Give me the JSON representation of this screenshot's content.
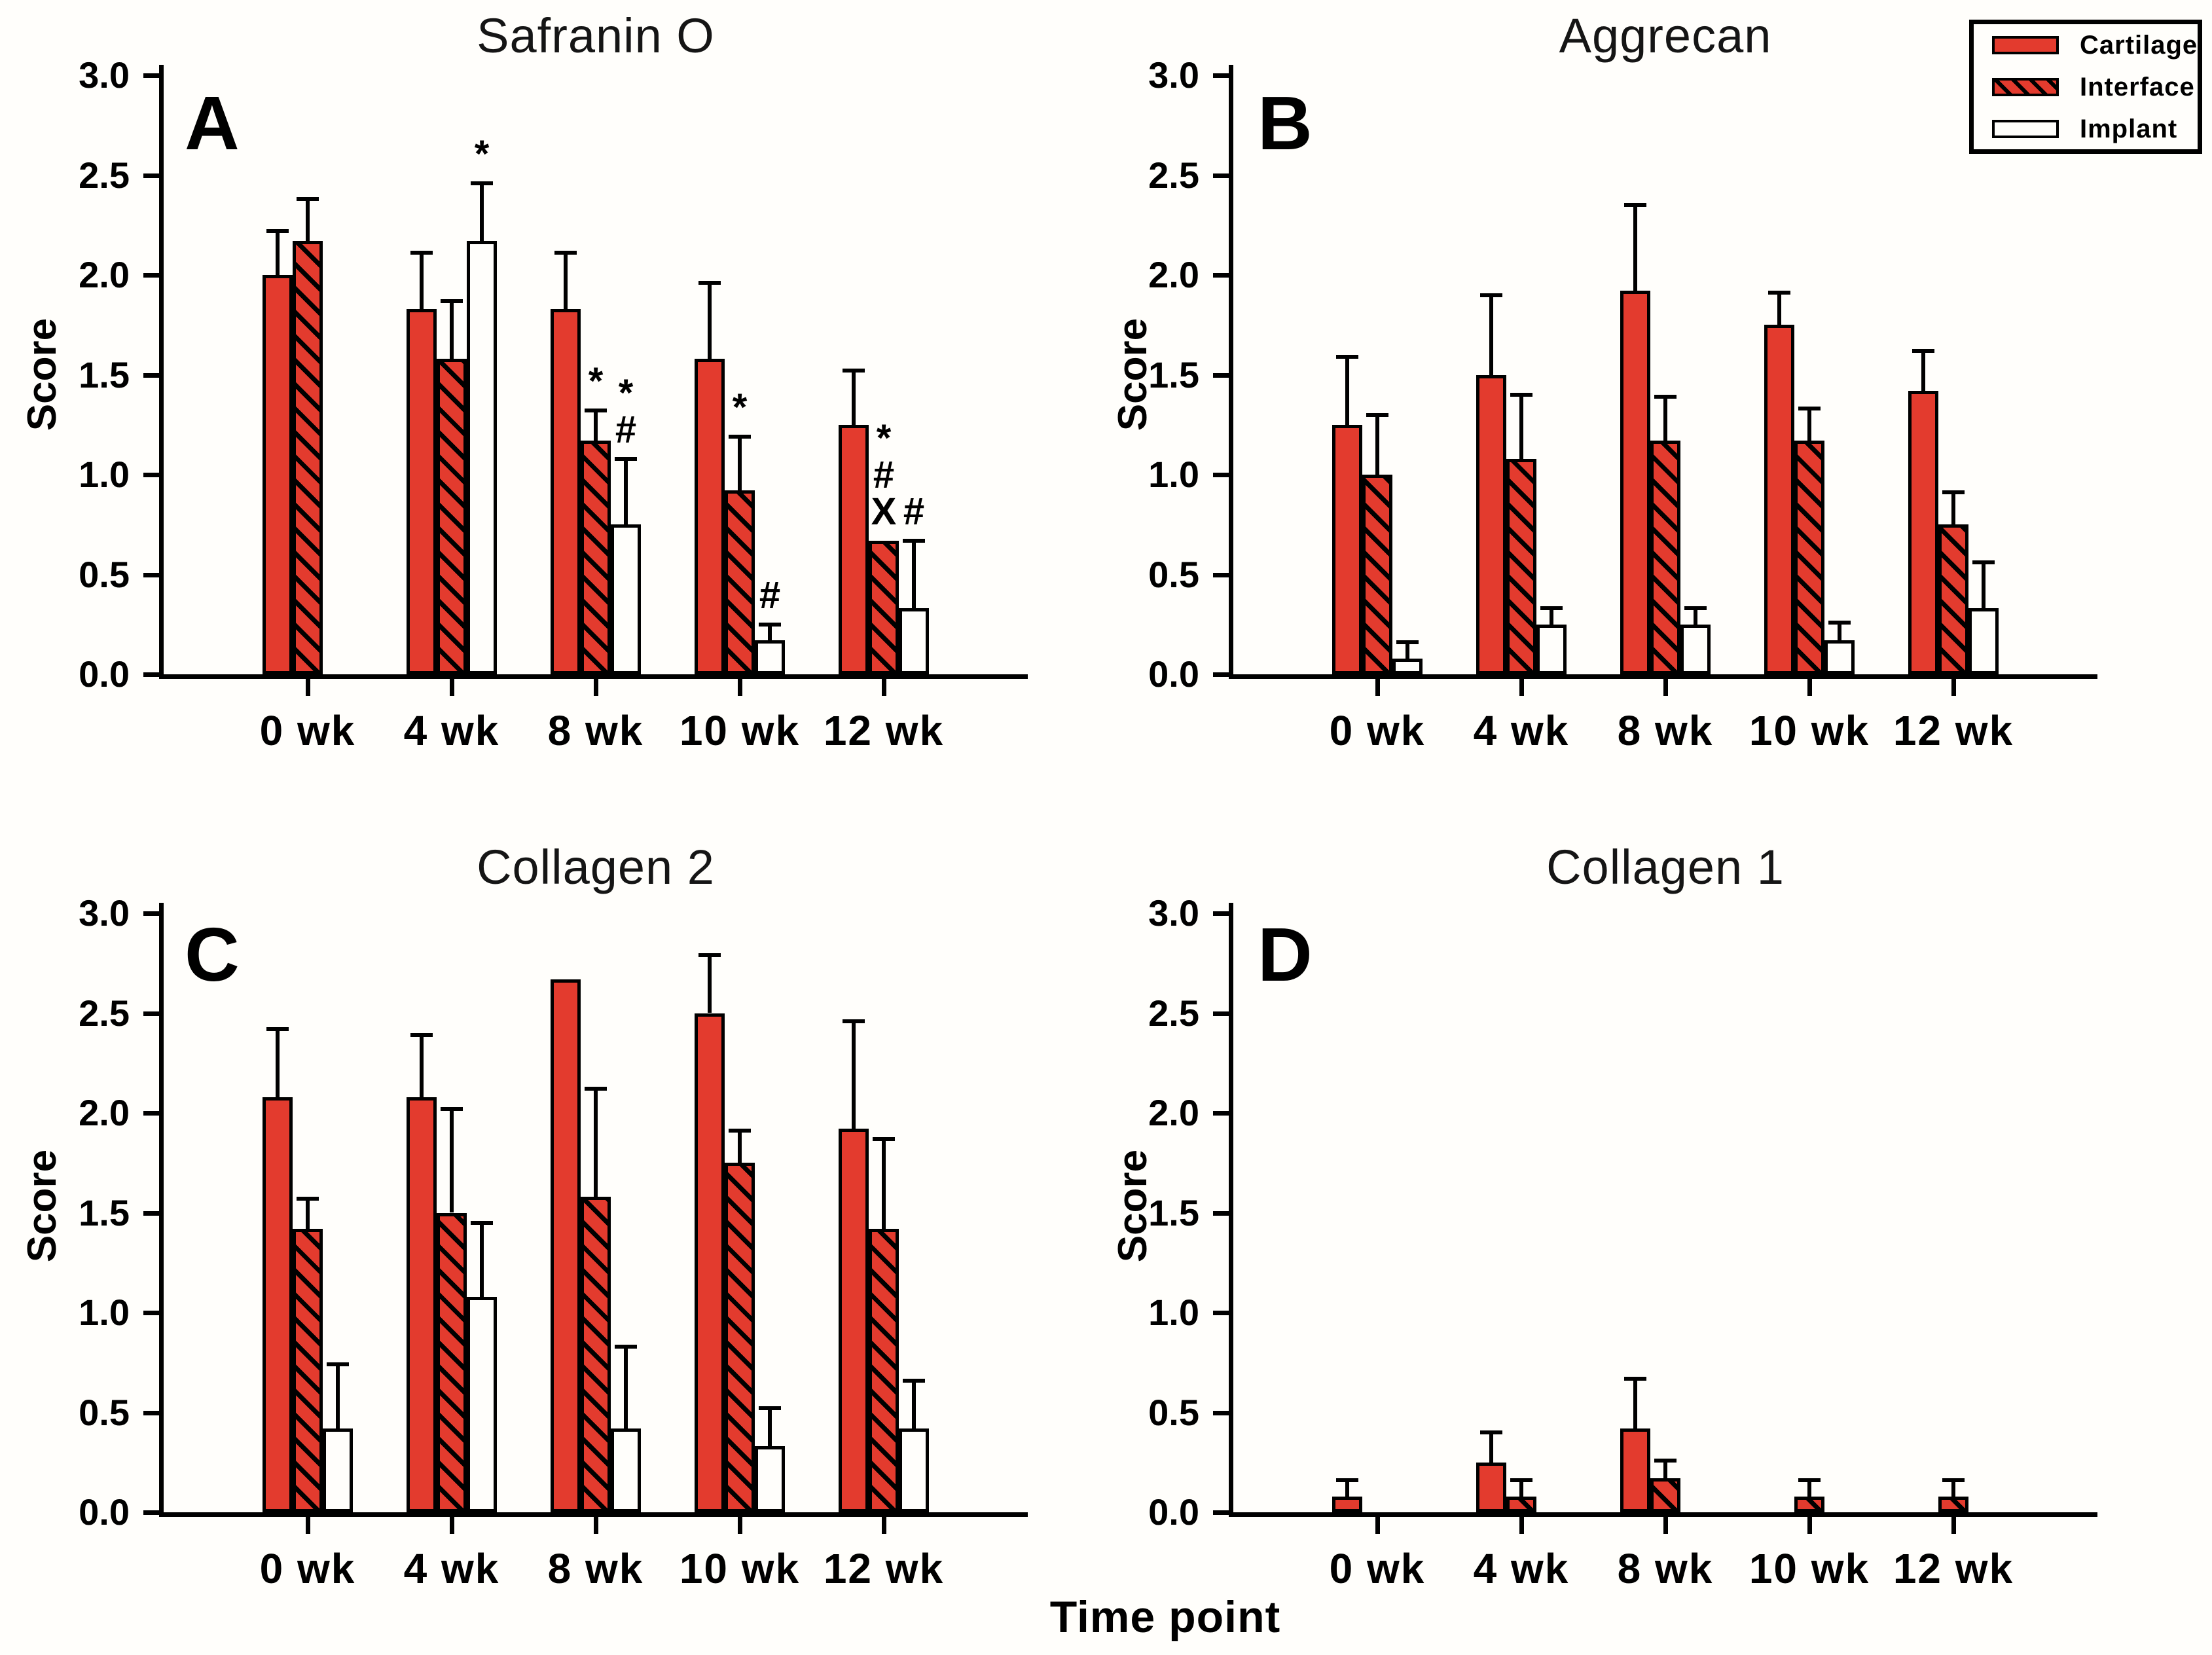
{
  "figure": {
    "xlabel": "Time point",
    "ylabel": "Score"
  },
  "colors": {
    "bar_red": "#E33B2E",
    "outline": "#000000",
    "background": "#FFFEFB"
  },
  "legend": {
    "entries": [
      {
        "label": "Cartilage",
        "style": "solid"
      },
      {
        "label": "Interface",
        "style": "hatched"
      },
      {
        "label": "Implant",
        "style": "open"
      }
    ],
    "position": "top-right"
  },
  "chart_data": [
    {
      "type": "bar",
      "panel_letter": "A",
      "title": "Safranin O",
      "ylabel": "Score",
      "xlabel": "Time point",
      "ylim": [
        0,
        3
      ],
      "yticks": [
        "0.0",
        "0.5",
        "1.0",
        "1.5",
        "2.0",
        "2.5",
        "3.0"
      ],
      "grid": false,
      "categories": [
        "0 wk",
        "4 wk",
        "8 wk",
        "10 wk",
        "12 wk"
      ],
      "series": [
        {
          "name": "Cartilage",
          "style": "solid",
          "values": [
            2.0,
            1.83,
            1.83,
            1.58,
            1.25
          ],
          "errors": [
            0.22,
            0.28,
            0.28,
            0.38,
            0.27
          ],
          "annotations": [
            null,
            null,
            null,
            null,
            null
          ]
        },
        {
          "name": "Interface",
          "style": "hatched",
          "values": [
            2.17,
            1.58,
            1.17,
            0.92,
            0.67
          ],
          "errors": [
            0.21,
            0.29,
            0.15,
            0.27,
            0
          ],
          "annotations": [
            null,
            null,
            [
              "*"
            ],
            [
              "*"
            ],
            [
              "*",
              "#",
              "X"
            ]
          ]
        },
        {
          "name": "Implant",
          "style": "open",
          "values": [
            null,
            2.17,
            0.75,
            0.17,
            0.33
          ],
          "errors": [
            null,
            0.29,
            0.33,
            0.08,
            0.34
          ],
          "annotations": [
            null,
            [
              "*"
            ],
            [
              "*",
              "#"
            ],
            [
              "#"
            ],
            [
              "#"
            ]
          ]
        }
      ]
    },
    {
      "type": "bar",
      "panel_letter": "B",
      "title": "Aggrecan",
      "ylabel": "Score",
      "xlabel": "Time point",
      "ylim": [
        0,
        3
      ],
      "yticks": [
        "0.0",
        "0.5",
        "1.0",
        "1.5",
        "2.0",
        "2.5",
        "3.0"
      ],
      "grid": false,
      "categories": [
        "0 wk",
        "4 wk",
        "8 wk",
        "10 wk",
        "12 wk"
      ],
      "series": [
        {
          "name": "Cartilage",
          "style": "solid",
          "values": [
            1.25,
            1.5,
            1.92,
            1.75,
            1.42
          ],
          "errors": [
            0.34,
            0.4,
            0.43,
            0.16,
            0.2
          ],
          "annotations": [
            null,
            null,
            null,
            null,
            null
          ]
        },
        {
          "name": "Interface",
          "style": "hatched",
          "values": [
            1.0,
            1.08,
            1.17,
            1.17,
            0.75
          ],
          "errors": [
            0.3,
            0.32,
            0.22,
            0.16,
            0.16
          ],
          "annotations": [
            null,
            null,
            null,
            null,
            null
          ]
        },
        {
          "name": "Implant",
          "style": "open",
          "values": [
            0.08,
            0.25,
            0.25,
            0.17,
            0.33
          ],
          "errors": [
            0.08,
            0.08,
            0.08,
            0.09,
            0.23
          ],
          "annotations": [
            null,
            null,
            null,
            null,
            null
          ]
        }
      ]
    },
    {
      "type": "bar",
      "panel_letter": "C",
      "title": "Collagen 2",
      "ylabel": "Score",
      "xlabel": "Time point",
      "ylim": [
        0,
        3
      ],
      "yticks": [
        "0.0",
        "0.5",
        "1.0",
        "1.5",
        "2.0",
        "2.5",
        "3.0"
      ],
      "grid": false,
      "categories": [
        "0 wk",
        "4 wk",
        "8 wk",
        "10 wk",
        "12 wk"
      ],
      "series": [
        {
          "name": "Cartilage",
          "style": "solid",
          "values": [
            2.08,
            2.08,
            2.67,
            2.5,
            1.92
          ],
          "errors": [
            0.34,
            0.31,
            0,
            0.29,
            0.54
          ],
          "annotations": [
            null,
            null,
            null,
            null,
            null
          ]
        },
        {
          "name": "Interface",
          "style": "hatched",
          "values": [
            1.42,
            1.5,
            1.58,
            1.75,
            1.42
          ],
          "errors": [
            0.15,
            0.52,
            0.54,
            0.16,
            0.45
          ],
          "annotations": [
            null,
            null,
            null,
            null,
            null
          ]
        },
        {
          "name": "Implant",
          "style": "open",
          "values": [
            0.42,
            1.08,
            0.42,
            0.33,
            0.42
          ],
          "errors": [
            0.32,
            0.37,
            0.41,
            0.19,
            0.24
          ],
          "annotations": [
            null,
            null,
            null,
            null,
            null
          ]
        }
      ]
    },
    {
      "type": "bar",
      "panel_letter": "D",
      "title": "Collagen 1",
      "ylabel": "Score",
      "xlabel": "Time point",
      "ylim": [
        0,
        3
      ],
      "yticks": [
        "0.0",
        "0.5",
        "1.0",
        "1.5",
        "2.0",
        "2.5",
        "3.0"
      ],
      "grid": false,
      "categories": [
        "0 wk",
        "4 wk",
        "8 wk",
        "10 wk",
        "12 wk"
      ],
      "series": [
        {
          "name": "Cartilage",
          "style": "solid",
          "values": [
            0.08,
            0.25,
            0.42,
            null,
            null
          ],
          "errors": [
            0.08,
            0.15,
            0.25,
            null,
            null
          ],
          "annotations": [
            null,
            null,
            null,
            null,
            null
          ]
        },
        {
          "name": "Interface",
          "style": "hatched",
          "values": [
            null,
            0.08,
            0.17,
            0.08,
            0.08
          ],
          "errors": [
            null,
            0.08,
            0.09,
            0.08,
            0.08
          ],
          "annotations": [
            null,
            null,
            null,
            null,
            null
          ]
        },
        {
          "name": "Implant",
          "style": "open",
          "values": [
            null,
            null,
            null,
            null,
            null
          ],
          "errors": [
            null,
            null,
            null,
            null,
            null
          ],
          "annotations": [
            null,
            null,
            null,
            null,
            null
          ]
        }
      ]
    }
  ]
}
